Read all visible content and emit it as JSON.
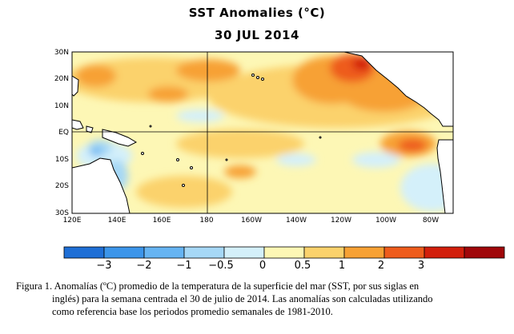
{
  "title": "SST Anomalies (°C)",
  "date": "30 JUL 2014",
  "map": {
    "lat_labels": [
      "30N",
      "20N",
      "10N",
      "EQ",
      "10S",
      "20S",
      "30S"
    ],
    "lon_labels": [
      "120E",
      "140E",
      "160E",
      "180",
      "160W",
      "140W",
      "120W",
      "100W",
      "80W"
    ],
    "extent": {
      "lon_min": 120,
      "lon_max": 290,
      "lat_min": -30,
      "lat_max": 30
    }
  },
  "colorbar": {
    "labels": [
      "−3",
      "−2",
      "−1",
      "−0.5",
      "0",
      "0.5",
      "1",
      "2",
      "3"
    ],
    "colors": [
      "#1f6fd6",
      "#3c95ea",
      "#66b4f2",
      "#a6d8f6",
      "#d4f0fa",
      "#fdf7b5",
      "#fbd26c",
      "#f7a134",
      "#ee5c1c",
      "#d21f0c",
      "#a0070a"
    ]
  },
  "caption": {
    "line1": "Figura 1. Anomalías (ºC) promedio  de la temperatura de la superficie del mar (SST, por sus siglas  en",
    "line2": "inglés)  para la semana centrada el 30 de julio  de  2014.    Las anomalías son calculadas utilizando",
    "line3": "como referencia base los periodos promedio  semanales de 1981-2010."
  }
}
